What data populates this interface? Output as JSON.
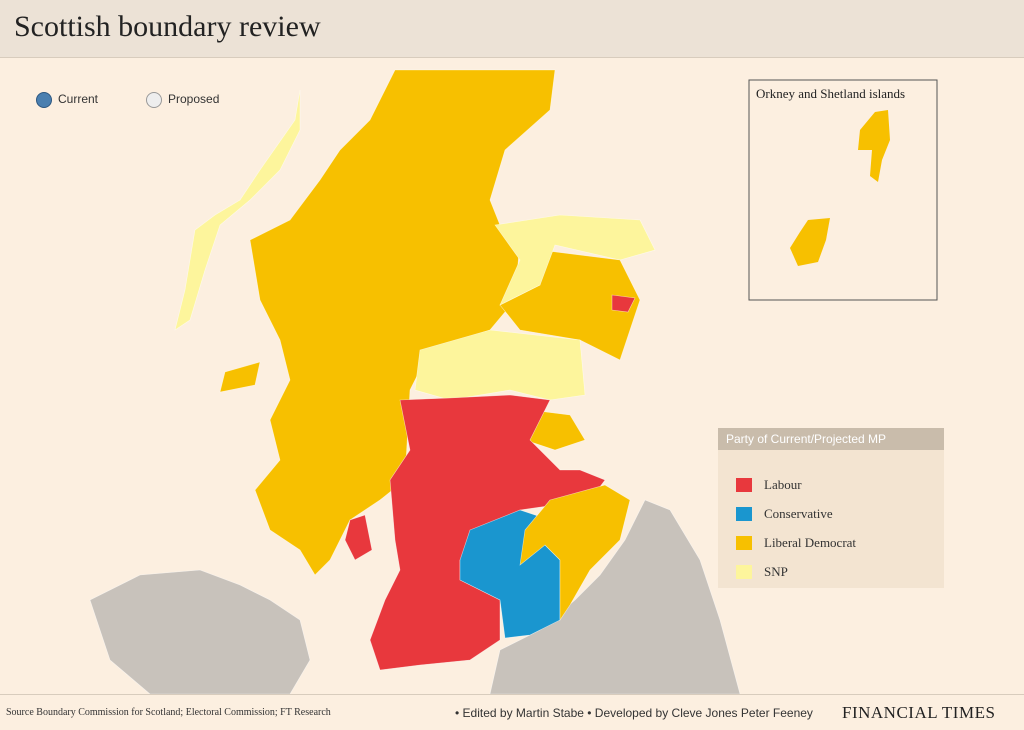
{
  "header": {
    "title": "Scottish boundary review"
  },
  "controls": {
    "options": [
      "Current",
      "Proposed"
    ]
  },
  "inset": {
    "title": "Orkney and Shetland islands"
  },
  "legend": {
    "title": "Party of Current/Projected MP",
    "items": [
      {
        "label": "Labour",
        "color": "#e8383d"
      },
      {
        "label": "Conservative",
        "color": "#1a96cf"
      },
      {
        "label": "Liberal Democrat",
        "color": "#f7c000"
      },
      {
        "label": "SNP",
        "color": "#fdf59c"
      }
    ]
  },
  "footer": {
    "source": "Source Boundary Commission for Scotland; Electoral Commission; FT Research",
    "credits": "• Edited by Martin Stabe • Developed by Cleve Jones Peter Feeney",
    "brand": "FINANCIAL TIMES"
  }
}
